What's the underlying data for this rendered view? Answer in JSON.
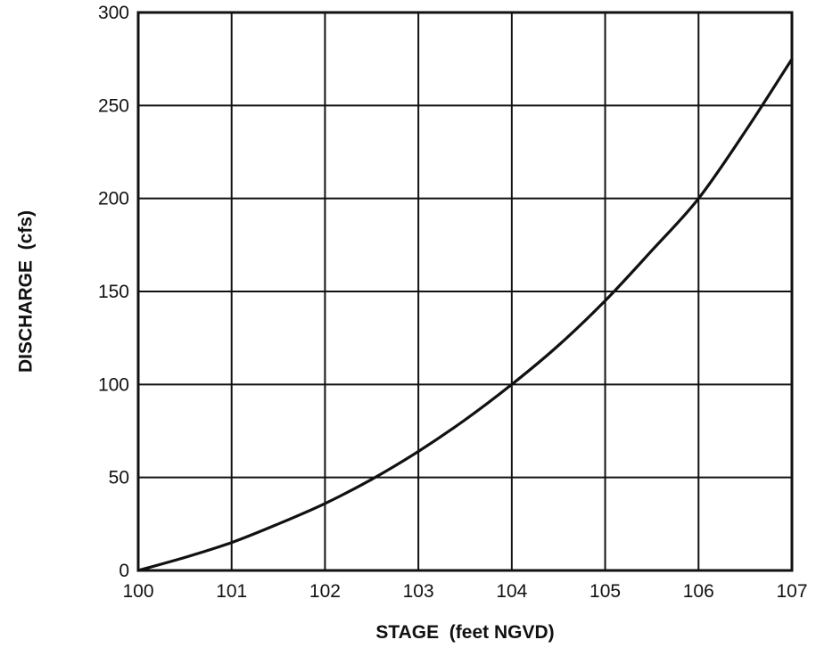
{
  "chart_data": {
    "type": "line",
    "xlabel": "STAGE  (feet NGVD)",
    "ylabel": "DISCHARGE  (cfs)",
    "xlim": [
      100,
      107
    ],
    "ylim": [
      0,
      300
    ],
    "x_ticks": [
      100,
      101,
      102,
      103,
      104,
      105,
      106,
      107
    ],
    "y_ticks": [
      0,
      50,
      100,
      150,
      200,
      250,
      300
    ],
    "grid": true,
    "legend": "none",
    "series": [
      {
        "x": [
          100,
          100.5,
          101,
          101.5,
          102,
          102.5,
          103,
          103.5,
          104,
          104.5,
          105,
          105.5,
          106,
          106.5,
          107
        ],
        "values": [
          0,
          7,
          15,
          25,
          36,
          49,
          64,
          81,
          100,
          121,
          145,
          172,
          200,
          236,
          275
        ]
      }
    ],
    "colors": {
      "line": "#111111",
      "grid": "#111111",
      "background": "#ffffff"
    }
  }
}
